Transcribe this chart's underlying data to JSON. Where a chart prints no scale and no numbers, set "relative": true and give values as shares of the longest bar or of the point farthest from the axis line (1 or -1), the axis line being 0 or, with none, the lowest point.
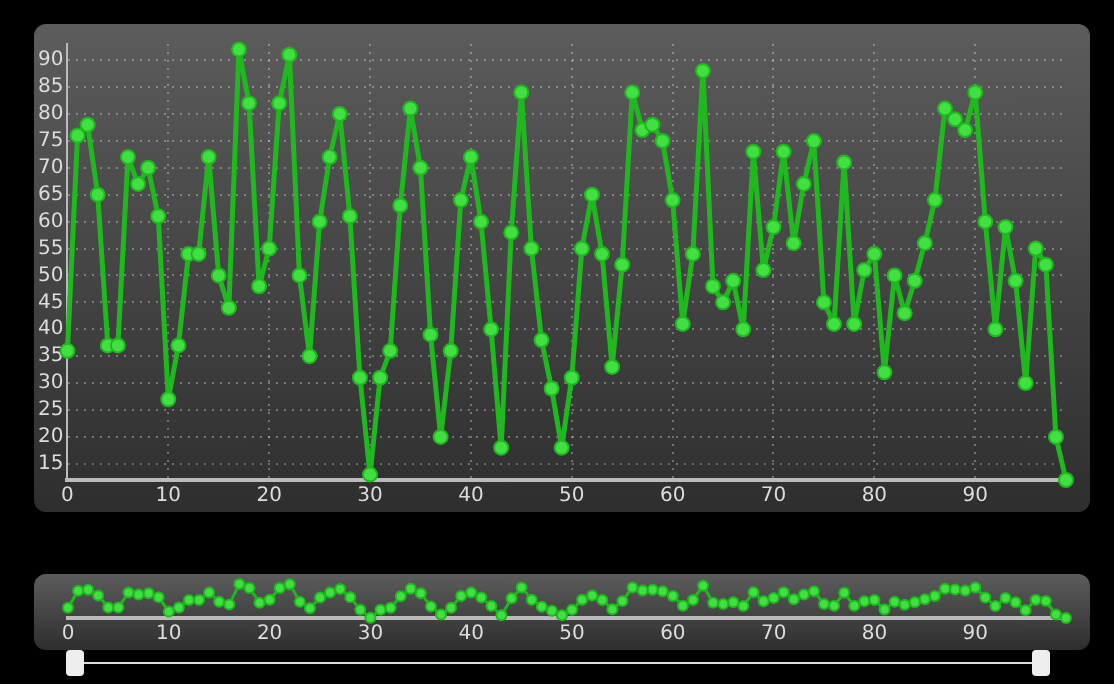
{
  "chart_data": [
    {
      "type": "line",
      "x": [
        0,
        1,
        2,
        3,
        4,
        5,
        6,
        7,
        8,
        9,
        10,
        11,
        12,
        13,
        14,
        15,
        16,
        17,
        18,
        19,
        20,
        21,
        22,
        23,
        24,
        25,
        26,
        27,
        28,
        29,
        30,
        31,
        32,
        33,
        34,
        35,
        36,
        37,
        38,
        39,
        40,
        41,
        42,
        43,
        44,
        45,
        46,
        47,
        48,
        49,
        50,
        51,
        52,
        53,
        54,
        55,
        56,
        57,
        58,
        59,
        60,
        61,
        62,
        63,
        64,
        65,
        66,
        67,
        68,
        69,
        70,
        71,
        72,
        73,
        74,
        75,
        76,
        77,
        78,
        79,
        80,
        81,
        82,
        83,
        84,
        85,
        86,
        87,
        88,
        89,
        90,
        91,
        92,
        93,
        94,
        95,
        96,
        97,
        98,
        99
      ],
      "series": [
        {
          "color": "#1fb81f",
          "values": [
            36,
            76,
            78,
            65,
            37,
            37,
            72,
            67,
            70,
            61,
            27,
            37,
            54,
            54,
            72,
            50,
            44,
            92,
            82,
            48,
            55,
            82,
            91,
            50,
            35,
            60,
            72,
            80,
            61,
            31,
            13,
            31,
            36,
            63,
            81,
            70,
            39,
            20,
            36,
            64,
            72,
            60,
            40,
            18,
            58,
            84,
            55,
            38,
            29,
            18,
            31,
            55,
            65,
            54,
            33,
            52,
            84,
            77,
            78,
            75,
            64,
            41,
            54,
            88,
            48,
            45,
            49,
            40,
            73,
            51,
            59,
            73,
            56,
            67,
            75,
            45,
            41,
            71,
            41,
            51,
            54,
            32,
            50,
            43,
            49,
            56,
            64,
            81,
            79,
            77,
            84,
            60,
            40,
            59,
            49,
            30,
            55,
            52,
            20,
            12
          ]
        }
      ],
      "xlim": [
        0,
        99
      ],
      "xticks": [
        0,
        10,
        20,
        30,
        40,
        50,
        60,
        70,
        80,
        90
      ],
      "ylim": [
        12,
        93
      ],
      "yticks": [
        15,
        20,
        25,
        30,
        35,
        40,
        45,
        50,
        55,
        60,
        65,
        70,
        75,
        80,
        85,
        90
      ],
      "grid": true,
      "marker": "circle",
      "line_style": "solid"
    },
    {
      "type": "line",
      "x": [
        0,
        1,
        2,
        3,
        4,
        5,
        6,
        7,
        8,
        9,
        10,
        11,
        12,
        13,
        14,
        15,
        16,
        17,
        18,
        19,
        20,
        21,
        22,
        23,
        24,
        25,
        26,
        27,
        28,
        29,
        30,
        31,
        32,
        33,
        34,
        35,
        36,
        37,
        38,
        39,
        40,
        41,
        42,
        43,
        44,
        45,
        46,
        47,
        48,
        49,
        50,
        51,
        52,
        53,
        54,
        55,
        56,
        57,
        58,
        59,
        60,
        61,
        62,
        63,
        64,
        65,
        66,
        67,
        68,
        69,
        70,
        71,
        72,
        73,
        74,
        75,
        76,
        77,
        78,
        79,
        80,
        81,
        82,
        83,
        84,
        85,
        86,
        87,
        88,
        89,
        90,
        91,
        92,
        93,
        94,
        95,
        96,
        97,
        98,
        99
      ],
      "series": [
        {
          "color": "#1fb81f",
          "values": [
            0.3,
            0.8,
            0.83,
            0.66,
            0.31,
            0.31,
            0.75,
            0.69,
            0.73,
            0.61,
            0.19,
            0.31,
            0.53,
            0.53,
            0.75,
            0.48,
            0.4,
            1,
            0.88,
            0.45,
            0.54,
            0.88,
            0.99,
            0.48,
            0.29,
            0.6,
            0.75,
            0.85,
            0.61,
            0.24,
            0.01,
            0.24,
            0.3,
            0.64,
            0.86,
            0.73,
            0.34,
            0.1,
            0.3,
            0.65,
            0.75,
            0.6,
            0.35,
            0.08,
            0.58,
            0.9,
            0.54,
            0.33,
            0.21,
            0.08,
            0.24,
            0.54,
            0.66,
            0.53,
            0.26,
            0.5,
            0.9,
            0.81,
            0.83,
            0.79,
            0.65,
            0.36,
            0.53,
            0.95,
            0.45,
            0.41,
            0.46,
            0.35,
            0.76,
            0.49,
            0.59,
            0.76,
            0.55,
            0.69,
            0.79,
            0.41,
            0.36,
            0.74,
            0.36,
            0.49,
            0.53,
            0.25,
            0.48,
            0.39,
            0.46,
            0.55,
            0.65,
            0.86,
            0.84,
            0.81,
            0.9,
            0.6,
            0.35,
            0.59,
            0.46,
            0.23,
            0.54,
            0.5,
            0.1,
            0
          ]
        }
      ],
      "xlim": [
        0,
        99
      ],
      "xticks": [
        0,
        10,
        20,
        30,
        40,
        50,
        60,
        70,
        80,
        90
      ],
      "relative": true,
      "tick_labels": "x",
      "marker": "circle",
      "line_style": "solid"
    }
  ]
}
